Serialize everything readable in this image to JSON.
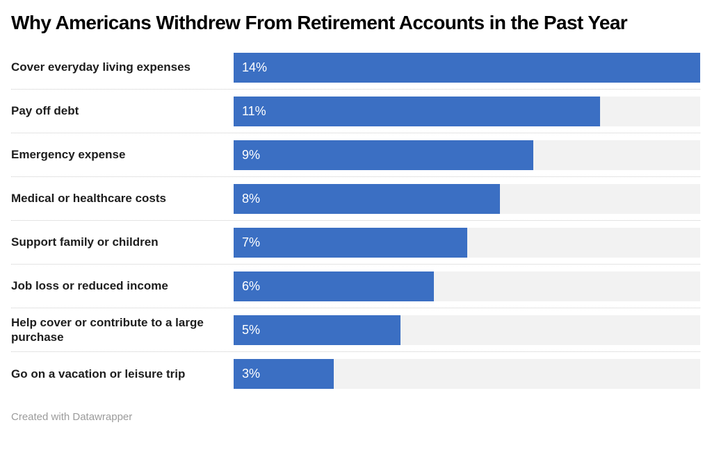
{
  "chart": {
    "title": "Why Americans Withdrew From Retirement Accounts in the Past Year"
  },
  "chart_data": {
    "type": "bar",
    "orientation": "horizontal",
    "title": "Why Americans Withdrew From Retirement Accounts in the Past Year",
    "categories": [
      "Cover everyday living expenses",
      "Pay off debt",
      "Emergency expense",
      "Medical or healthcare costs",
      "Support family or children",
      "Job loss or reduced income",
      "Help cover or contribute to a large purchase",
      "Go on a vacation or leisure trip"
    ],
    "values": [
      14,
      11,
      9,
      8,
      7,
      6,
      5,
      3
    ],
    "value_labels": [
      "14%",
      "11%",
      "9%",
      "8%",
      "7%",
      "6%",
      "5%",
      "3%"
    ],
    "xlim": [
      0,
      14
    ],
    "xlabel": "",
    "ylabel": "",
    "grid": "off",
    "legend": "none",
    "bar_color": "#3b6fc3",
    "track_color": "#f2f2f2",
    "separator_style": "dotted"
  },
  "footer": {
    "text": "Created with Datawrapper"
  }
}
